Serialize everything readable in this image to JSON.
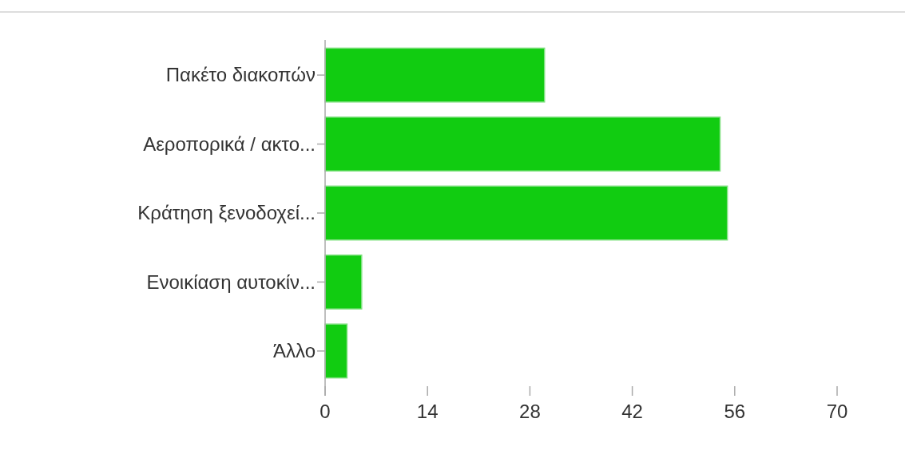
{
  "chart_data": {
    "type": "bar",
    "orientation": "horizontal",
    "categories": [
      "Πακέτο διακοπών",
      "Αεροπορικά / ακτο...",
      "Κράτηση ξενοδοχεί...",
      "Ενοικίαση αυτοκίν...",
      "Άλλο"
    ],
    "values": [
      30,
      54,
      55,
      5,
      3
    ],
    "color": "#11cc11",
    "xlim": [
      0,
      70
    ],
    "xticks": [
      0,
      14,
      28,
      42,
      56,
      70
    ],
    "grid": false
  }
}
